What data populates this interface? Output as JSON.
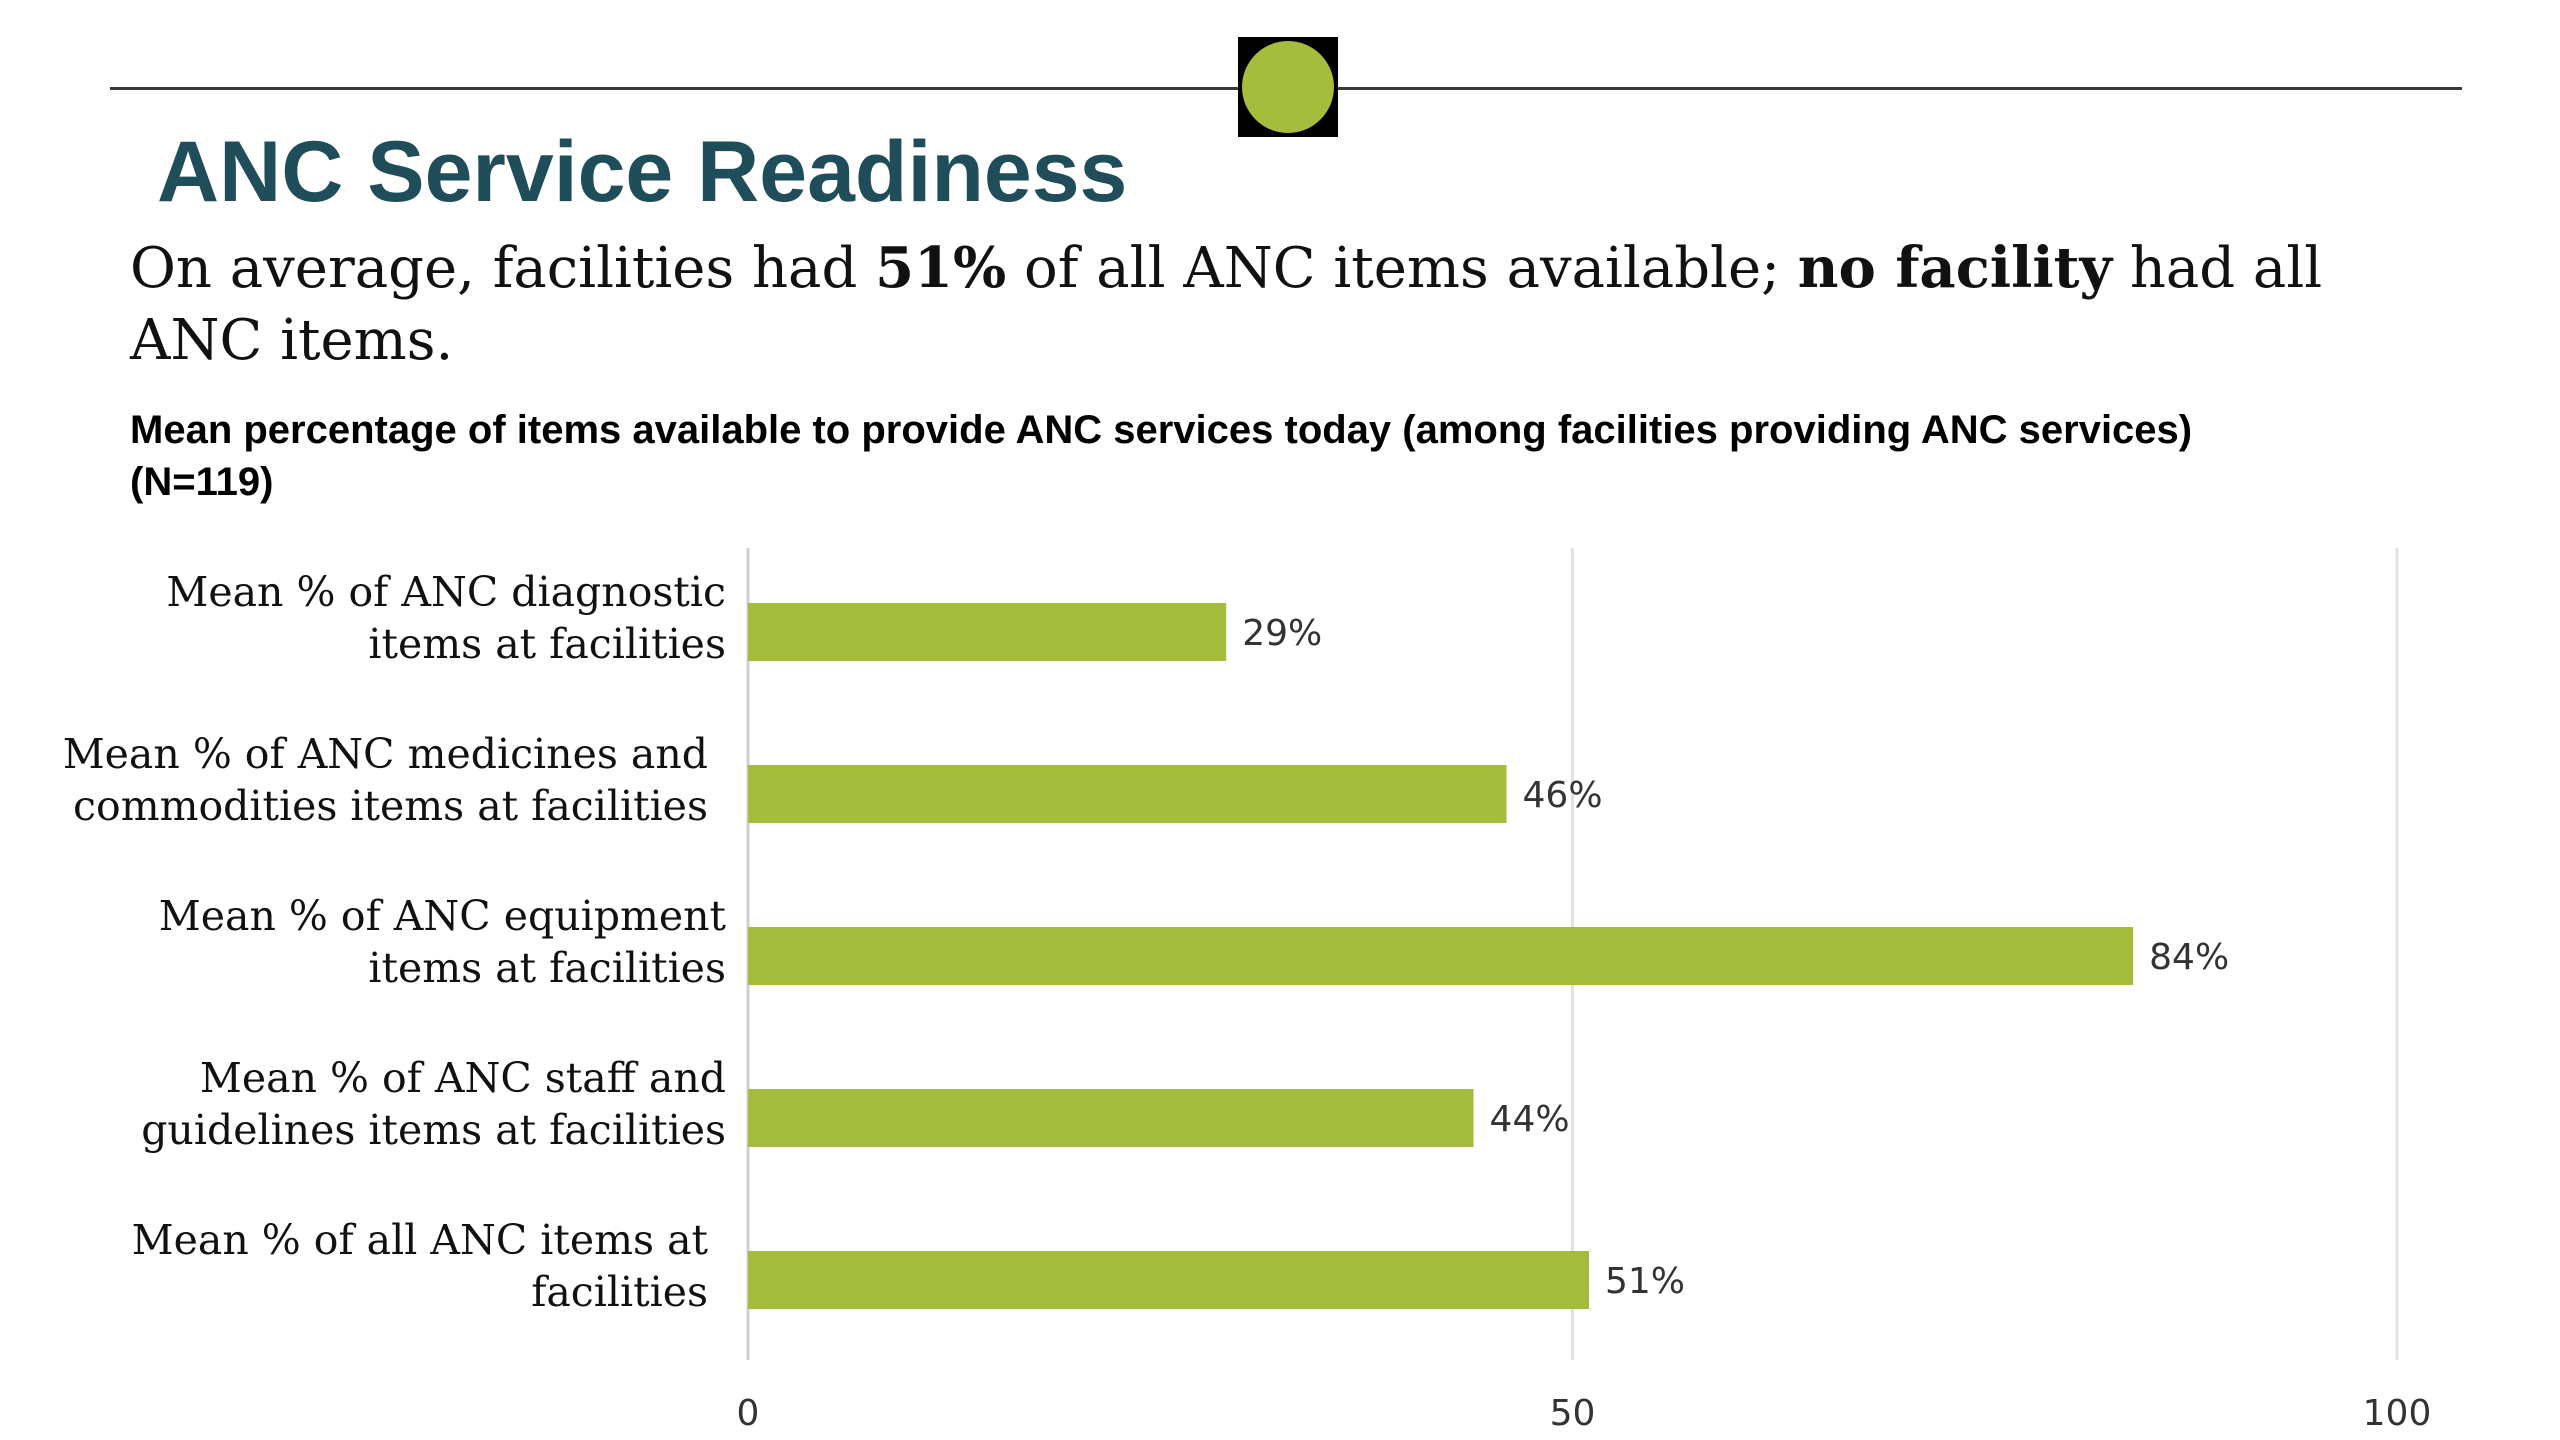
{
  "slide": {
    "title": "ANC Service Readiness",
    "accent_color": "#a5bd3c",
    "title_color": "#1f4e5a",
    "badge_icon": "green-circle-icon",
    "subtitle_parts": [
      {
        "text": "On average, facilities had ",
        "bold": false
      },
      {
        "text": "51%",
        "bold": true
      },
      {
        "text": " of all ANC items available; ",
        "bold": false
      },
      {
        "text": "no facility",
        "bold": true
      },
      {
        "text": " had all ANC items.",
        "bold": false
      }
    ]
  },
  "chart_data": {
    "type": "bar",
    "orientation": "horizontal",
    "title": "Mean percentage of items available to provide ANC services today (among facilities providing ANC services) (N=119)",
    "categories": [
      [
        "Mean % of ANC diagnostic",
        "items at facilities"
      ],
      [
        "Mean % of ANC medicines and",
        "commodities items at facilities"
      ],
      [
        "Mean % of ANC equipment",
        "items at facilities"
      ],
      [
        "Mean % of ANC staff and",
        "guidelines items at facilities"
      ],
      [
        "Mean % of all ANC items at",
        "facilities"
      ]
    ],
    "values": [
      29,
      46,
      84,
      44,
      51
    ],
    "value_labels": [
      "29%",
      "46%",
      "84%",
      "44%",
      "51%"
    ],
    "xlim": [
      0,
      100
    ],
    "xticks": [
      0,
      50,
      100
    ],
    "grid": true,
    "bar_color": "#a5bd3c",
    "xlabel": "",
    "ylabel": ""
  }
}
